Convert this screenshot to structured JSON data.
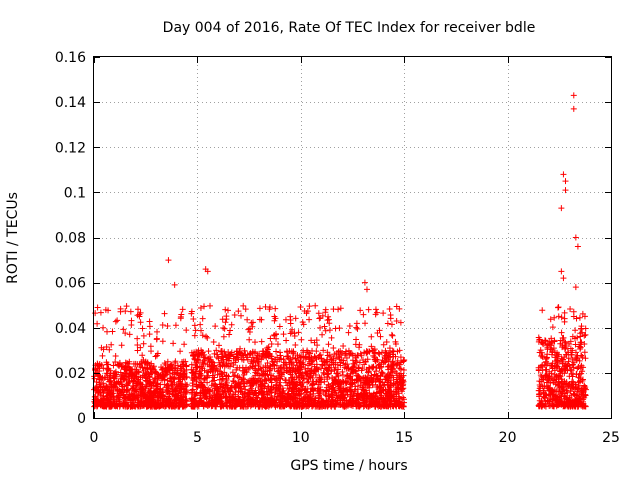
{
  "chart_data": {
    "type": "scatter",
    "title": "Day 004 of 2016, Rate Of TEC Index for receiver bdle",
    "xlabel": "GPS time / hours",
    "ylabel": "ROTI / TECUs",
    "xlim": [
      0,
      25
    ],
    "ylim": [
      0,
      0.16
    ],
    "x_ticks": [
      0,
      5,
      10,
      15,
      20,
      25
    ],
    "x_tick_labels": [
      "0",
      "5",
      "10",
      "15",
      "20",
      "25"
    ],
    "y_ticks": [
      0,
      0.02,
      0.04,
      0.06,
      0.08,
      0.1,
      0.12,
      0.14,
      0.16
    ],
    "y_tick_labels": [
      "0",
      "0.02",
      "0.04",
      "0.06",
      "0.08",
      "0.1",
      "0.12",
      "0.14",
      "0.16"
    ],
    "grid": true,
    "marker": "+",
    "series_color": "#ff0000",
    "data_segments": [
      {
        "x_start": 0.0,
        "x_end": 4.5,
        "typical_range": [
          0.005,
          0.025
        ],
        "peak": 0.07
      },
      {
        "x_start": 4.7,
        "x_end": 15.0,
        "typical_range": [
          0.005,
          0.03
        ],
        "peak": 0.066
      },
      {
        "x_start": 21.5,
        "x_end": 23.8,
        "typical_range": [
          0.005,
          0.035
        ],
        "peak": 0.143
      }
    ],
    "notable_points": [
      {
        "x": 3.6,
        "y": 0.07
      },
      {
        "x": 3.9,
        "y": 0.059
      },
      {
        "x": 5.4,
        "y": 0.066
      },
      {
        "x": 5.5,
        "y": 0.065
      },
      {
        "x": 13.1,
        "y": 0.06
      },
      {
        "x": 13.2,
        "y": 0.057
      },
      {
        "x": 22.6,
        "y": 0.093
      },
      {
        "x": 22.7,
        "y": 0.108
      },
      {
        "x": 22.8,
        "y": 0.105
      },
      {
        "x": 22.8,
        "y": 0.101
      },
      {
        "x": 23.2,
        "y": 0.143
      },
      {
        "x": 23.2,
        "y": 0.137
      },
      {
        "x": 23.3,
        "y": 0.08
      },
      {
        "x": 23.4,
        "y": 0.076
      },
      {
        "x": 23.3,
        "y": 0.058
      },
      {
        "x": 22.6,
        "y": 0.065
      },
      {
        "x": 22.7,
        "y": 0.062
      }
    ]
  }
}
